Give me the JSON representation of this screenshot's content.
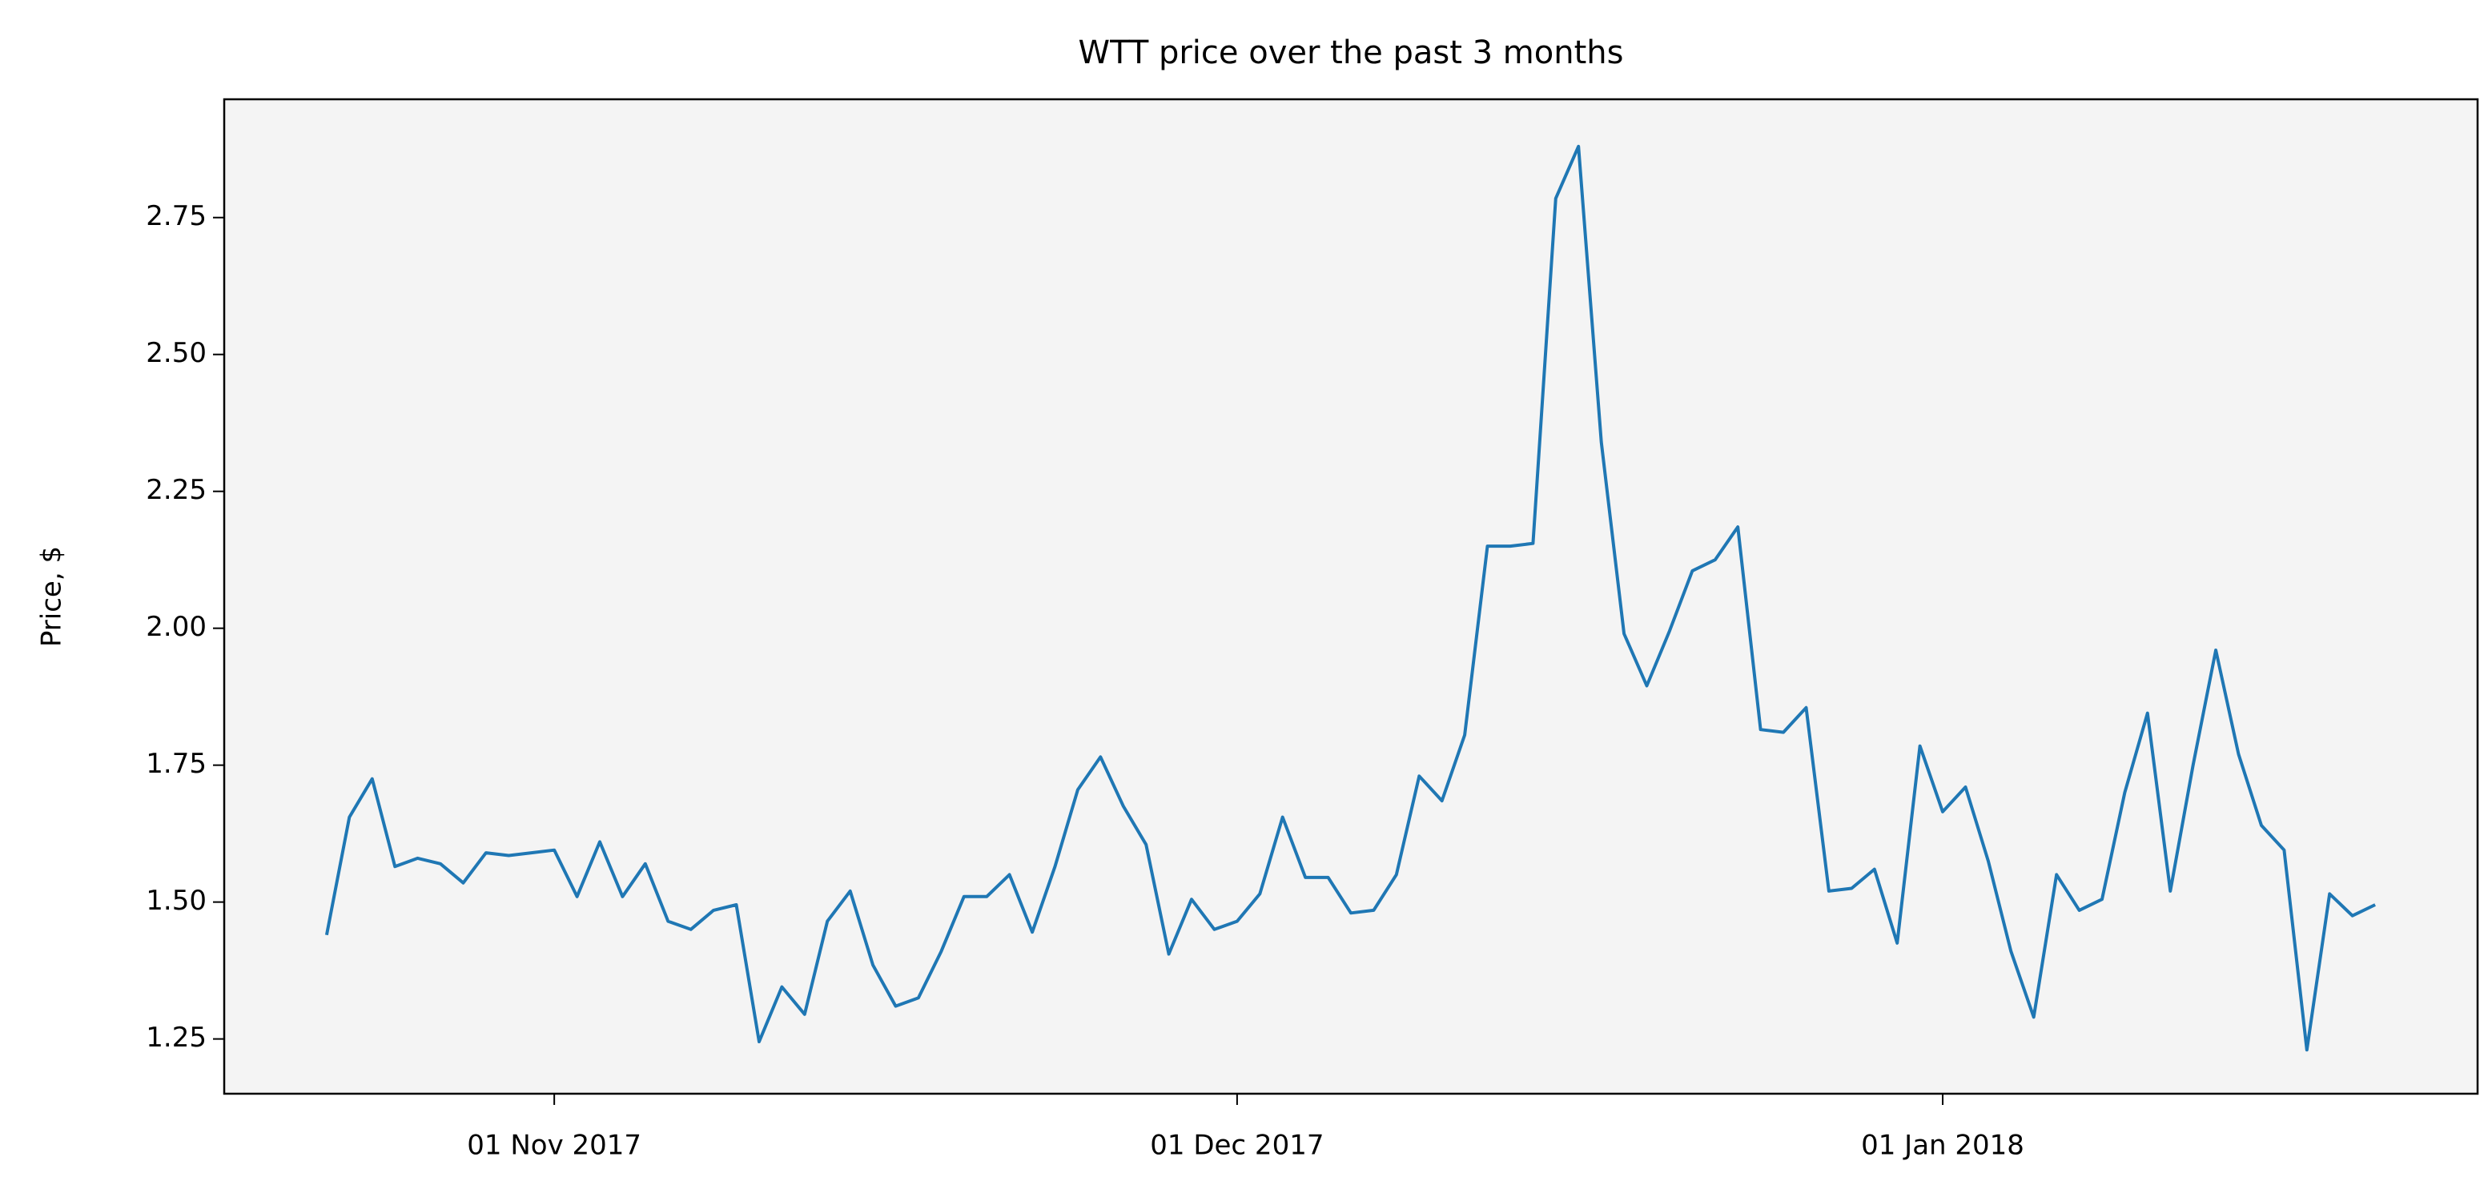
{
  "chart_data": {
    "type": "line",
    "title": "WTT price over the past 3 months",
    "y_label": "Price, $",
    "x": [
      "2017-10-22",
      "2017-10-23",
      "2017-10-24",
      "2017-10-25",
      "2017-10-26",
      "2017-10-27",
      "2017-10-28",
      "2017-10-29",
      "2017-10-30",
      "2017-10-31",
      "2017-11-01",
      "2017-11-02",
      "2017-11-03",
      "2017-11-04",
      "2017-11-05",
      "2017-11-06",
      "2017-11-07",
      "2017-11-08",
      "2017-11-09",
      "2017-11-10",
      "2017-11-11",
      "2017-11-12",
      "2017-11-13",
      "2017-11-14",
      "2017-11-15",
      "2017-11-16",
      "2017-11-17",
      "2017-11-18",
      "2017-11-19",
      "2017-11-20",
      "2017-11-21",
      "2017-11-22",
      "2017-11-23",
      "2017-11-24",
      "2017-11-25",
      "2017-11-26",
      "2017-11-27",
      "2017-11-28",
      "2017-11-29",
      "2017-11-30",
      "2017-12-01",
      "2017-12-02",
      "2017-12-03",
      "2017-12-04",
      "2017-12-05",
      "2017-12-06",
      "2017-12-07",
      "2017-12-08",
      "2017-12-09",
      "2017-12-10",
      "2017-12-11",
      "2017-12-12",
      "2017-12-13",
      "2017-12-14",
      "2017-12-15",
      "2017-12-16",
      "2017-12-17",
      "2017-12-18",
      "2017-12-19",
      "2017-12-20",
      "2017-12-21",
      "2017-12-22",
      "2017-12-23",
      "2017-12-24",
      "2017-12-25",
      "2017-12-26",
      "2017-12-27",
      "2017-12-28",
      "2017-12-29",
      "2017-12-30",
      "2017-12-31",
      "2018-01-01",
      "2018-01-02",
      "2018-01-03",
      "2018-01-04",
      "2018-01-05",
      "2018-01-06",
      "2018-01-07",
      "2018-01-08",
      "2018-01-09",
      "2018-01-10",
      "2018-01-11",
      "2018-01-12",
      "2018-01-13",
      "2018-01-14",
      "2018-01-15",
      "2018-01-16",
      "2018-01-17",
      "2018-01-18",
      "2018-01-19",
      "2018-01-20"
    ],
    "series": [
      {
        "name": "WTT",
        "color": "#1f77b4",
        "values": [
          1.44,
          1.655,
          1.725,
          1.565,
          1.58,
          1.57,
          1.535,
          1.59,
          1.585,
          1.59,
          1.595,
          1.51,
          1.61,
          1.51,
          1.57,
          1.465,
          1.45,
          1.485,
          1.495,
          1.245,
          1.345,
          1.295,
          1.465,
          1.52,
          1.385,
          1.31,
          1.325,
          1.41,
          1.51,
          1.51,
          1.55,
          1.445,
          1.565,
          1.705,
          1.765,
          1.675,
          1.605,
          1.405,
          1.505,
          1.45,
          1.465,
          1.515,
          1.655,
          1.545,
          1.545,
          1.48,
          1.485,
          1.55,
          1.73,
          1.685,
          1.805,
          2.15,
          2.15,
          2.155,
          2.785,
          2.88,
          2.34,
          1.99,
          1.895,
          1.995,
          2.105,
          2.125,
          2.185,
          1.815,
          1.81,
          1.855,
          1.52,
          1.525,
          1.56,
          1.425,
          1.785,
          1.665,
          1.71,
          1.575,
          1.41,
          1.29,
          1.55,
          1.485,
          1.505,
          1.7,
          1.845,
          1.52,
          1.75,
          1.96,
          1.77,
          1.64,
          1.595,
          1.23,
          1.515,
          1.475,
          1.495
        ]
      }
    ],
    "xlim": [
      "2017-10-17T12:00:00Z",
      "2018-01-24T12:00:00Z"
    ],
    "xticks": [
      {
        "value": "2017-11-01",
        "label": "01 Nov 2017"
      },
      {
        "value": "2017-12-01",
        "label": "01 Dec 2017"
      },
      {
        "value": "2018-01-01",
        "label": "01 Jan 2018"
      }
    ],
    "ylim": [
      1.15,
      2.966
    ],
    "yticks": [
      1.25,
      {
        "value": 1.5,
        "label": "1.50"
      },
      1.75,
      {
        "value": 2,
        "label": "2.00"
      },
      2.25,
      {
        "value": 2.5,
        "label": "2.50"
      },
      2.75
    ],
    "grid": false,
    "background": "#f4f4f4"
  }
}
